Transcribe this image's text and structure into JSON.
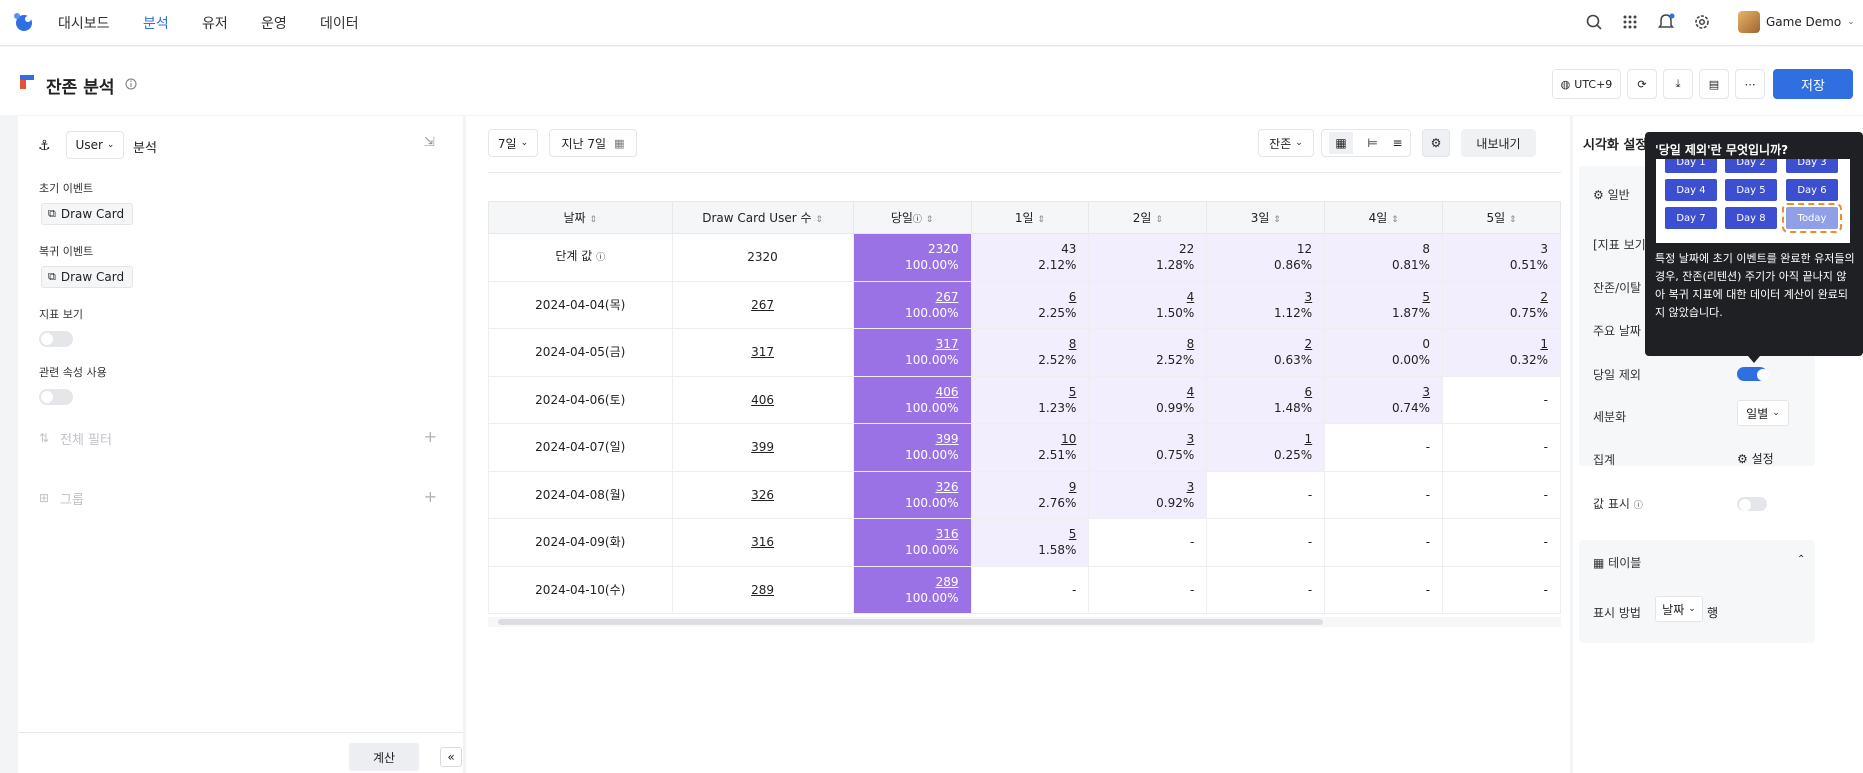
{
  "nav": {
    "items": [
      "대시보드",
      "분석",
      "유저",
      "운영",
      "데이터"
    ],
    "active": 1,
    "user": "Game Demo"
  },
  "page": {
    "title": "잔존 분석",
    "timezone": "UTC+9",
    "save": "저장"
  },
  "left": {
    "entity": "User",
    "analysis": "분석",
    "initial_event_label": "초기 이벤트",
    "initial_event": "Draw Card",
    "return_event_label": "복귀 이벤트",
    "return_event": "Draw Card",
    "metric_view": "지표 보기",
    "related_attr": "관련 속성 사용",
    "global_filter": "전체 필터",
    "group": "그룹",
    "calc": "계산"
  },
  "toolbar": {
    "period": "7일",
    "range": "지난 7일",
    "metric": "잔존",
    "export": "내보내기"
  },
  "table": {
    "headers": [
      "날짜",
      "Draw Card User 수",
      "당일",
      "1일",
      "2일",
      "3일",
      "4일",
      "5일"
    ],
    "rows": [
      {
        "date": "단계 값",
        "users": "2320",
        "day0": [
          "2320",
          "100.00%"
        ],
        "cells": [
          [
            "43",
            "2.12%"
          ],
          [
            "22",
            "1.28%"
          ],
          [
            "12",
            "0.86%"
          ],
          [
            "8",
            "0.81%"
          ],
          [
            "3",
            "0.51%"
          ]
        ]
      },
      {
        "date": "2024-04-04(목)",
        "users": "267",
        "day0": [
          "267",
          "100.00%"
        ],
        "cells": [
          [
            "6",
            "2.25%"
          ],
          [
            "4",
            "1.50%"
          ],
          [
            "3",
            "1.12%"
          ],
          [
            "5",
            "1.87%"
          ],
          [
            "2",
            "0.75%"
          ]
        ]
      },
      {
        "date": "2024-04-05(금)",
        "users": "317",
        "day0": [
          "317",
          "100.00%"
        ],
        "cells": [
          [
            "8",
            "2.52%"
          ],
          [
            "8",
            "2.52%"
          ],
          [
            "2",
            "0.63%"
          ],
          [
            "0",
            "0.00%"
          ],
          [
            "1",
            "0.32%"
          ]
        ]
      },
      {
        "date": "2024-04-06(토)",
        "users": "406",
        "day0": [
          "406",
          "100.00%"
        ],
        "cells": [
          [
            "5",
            "1.23%"
          ],
          [
            "4",
            "0.99%"
          ],
          [
            "6",
            "1.48%"
          ],
          [
            "3",
            "0.74%"
          ],
          [
            "-",
            ""
          ]
        ]
      },
      {
        "date": "2024-04-07(일)",
        "users": "399",
        "day0": [
          "399",
          "100.00%"
        ],
        "cells": [
          [
            "10",
            "2.51%"
          ],
          [
            "3",
            "0.75%"
          ],
          [
            "1",
            "0.25%"
          ],
          [
            "-",
            ""
          ],
          [
            "-",
            ""
          ]
        ]
      },
      {
        "date": "2024-04-08(월)",
        "users": "326",
        "day0": [
          "326",
          "100.00%"
        ],
        "cells": [
          [
            "9",
            "2.76%"
          ],
          [
            "3",
            "0.92%"
          ],
          [
            "-",
            ""
          ],
          [
            "-",
            ""
          ],
          [
            "-",
            ""
          ]
        ]
      },
      {
        "date": "2024-04-09(화)",
        "users": "316",
        "day0": [
          "316",
          "100.00%"
        ],
        "cells": [
          [
            "5",
            "1.58%"
          ],
          [
            "-",
            ""
          ],
          [
            "-",
            ""
          ],
          [
            "-",
            ""
          ],
          [
            "-",
            ""
          ]
        ]
      },
      {
        "date": "2024-04-10(수)",
        "users": "289",
        "day0": [
          "289",
          "100.00%"
        ],
        "cells": [
          [
            "-",
            ""
          ],
          [
            "-",
            ""
          ],
          [
            "-",
            ""
          ],
          [
            "-",
            ""
          ],
          [
            "-",
            ""
          ]
        ]
      }
    ]
  },
  "right": {
    "title": "시각화 설정",
    "general": "일반",
    "metric_view": "[지표 보기",
    "retention": "잔존/이탈",
    "main_date": "주요 날짜",
    "exclude_today": "당일 제외",
    "breakdown": "세분화",
    "breakdown_value": "일별",
    "aggregate": "집계",
    "aggregate_setting": "설정",
    "show_values": "값 표시",
    "table_section": "테이블",
    "display_method": "표시 방법",
    "display_value": "날짜",
    "display_suffix": "행"
  },
  "tooltip": {
    "title": "'당일 제외'란 무엇입니까?",
    "days": [
      "Day 1",
      "Day 2",
      "Day 3",
      "Day 4",
      "Day 5",
      "Day 6",
      "Day 7",
      "Day 8",
      "Today"
    ],
    "body": "특정 날짜에 초기 이벤트를 완료한 유저들의 경우, 잔존(리텐션) 주기가 아직 끝나지 않아 복귀 지표에 대한 데이터 계산이 완료되지 않았습니다."
  }
}
